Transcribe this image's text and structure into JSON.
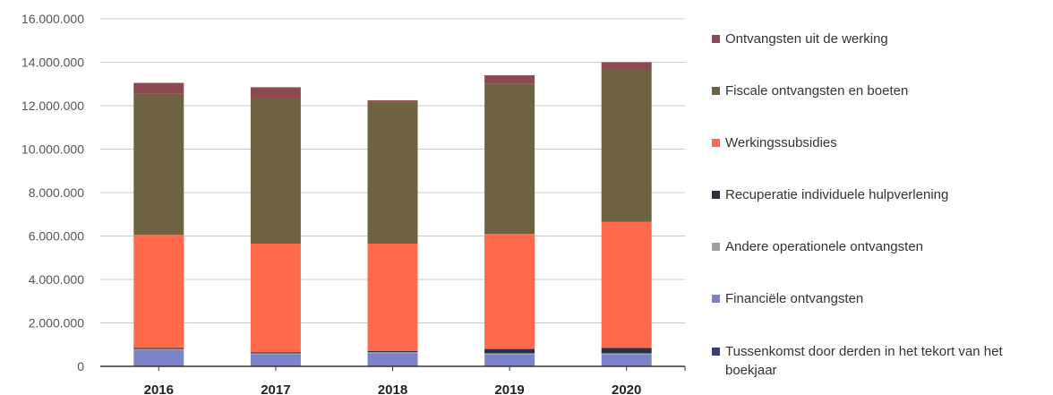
{
  "chart_data": {
    "type": "bar",
    "stacked": true,
    "categories": [
      "2016",
      "2017",
      "2018",
      "2019",
      "2020"
    ],
    "ylim": [
      0,
      16000000
    ],
    "yticks": [
      0,
      2000000,
      4000000,
      6000000,
      8000000,
      10000000,
      12000000,
      14000000,
      16000000
    ],
    "ytick_labels": [
      "0",
      "2.000.000",
      "4.000.000",
      "6.000.000",
      "8.000.000",
      "10.000.000",
      "12.000.000",
      "14.000.000",
      "16.000.000"
    ],
    "grid": true,
    "legend_position": "right",
    "series": [
      {
        "name": "Tussenkomst door derden in het tekort van het boekjaar",
        "color": "#3a3f7a",
        "values": [
          0,
          0,
          0,
          0,
          0
        ]
      },
      {
        "name": "Financiële ontvangsten",
        "color": "#7b83c9",
        "values": [
          750000,
          550000,
          600000,
          550000,
          550000
        ]
      },
      {
        "name": "Andere operationele ontvangsten",
        "color": "#a0a0a0",
        "values": [
          50000,
          50000,
          50000,
          50000,
          50000
        ]
      },
      {
        "name": "Recuperatie individuele hulpverlening",
        "color": "#2b2f45",
        "values": [
          50000,
          50000,
          50000,
          200000,
          250000
        ]
      },
      {
        "name": "Werkingssubsidies",
        "color": "#ff6a4d",
        "values": [
          5200000,
          5000000,
          4950000,
          5300000,
          5800000
        ]
      },
      {
        "name": "Fiscale ontvangsten en boeten",
        "color": "#6e6340",
        "values": [
          6500000,
          6700000,
          6550000,
          6900000,
          7000000
        ]
      },
      {
        "name": "Ontvangsten uit de werking",
        "color": "#8a4a50",
        "values": [
          500000,
          500000,
          50000,
          400000,
          350000
        ]
      }
    ]
  }
}
